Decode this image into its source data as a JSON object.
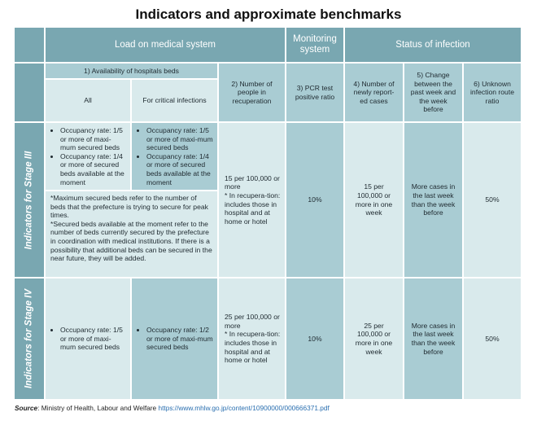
{
  "title": "Indicators and approximate benchmarks",
  "headers": {
    "load": "Load on medical system",
    "monitoring": "Monitoring system",
    "status": "Status of infection",
    "beds": "1) Availability of hospitals beds",
    "beds_all": "All",
    "beds_critical": "For critical infections",
    "recuperation": "2) Number of people in recuperation",
    "pcr": "3) PCR test positive ratio",
    "new_cases": "4) Number of newly report-ed cases",
    "change": "5) Change between the past week and the week before",
    "unknown": "6) Unknown infection route ratio"
  },
  "stage3": {
    "label": "Indicators for Stage III",
    "all": [
      "Occupancy rate: 1/5 or more of maxi-mum secured beds",
      "Occupancy rate: 1/4 or more of secured beds available at the moment"
    ],
    "critical": [
      "Occupancy rate: 1/5 or more of maxi-mum secured beds",
      "Occupancy rate: 1/4 or more of secured beds available at the moment"
    ],
    "note1": "*Maximum secured beds refer to the number of beds that the prefecture is trying to secure for peak times.",
    "note2": "*Secured beds available at the moment refer to the number of beds currently secured by the prefecture in coordination with medical institutions. If there is a possibility that additional beds can be secured in the near future, they will be added.",
    "recuperation_main": "15 per 100,000 or more",
    "recuperation_note": "* In recupera-tion: includes those in hospital and at home or hotel",
    "pcr": "10%",
    "new_cases": "15 per 100,000 or more in one week",
    "change": "More cases in the last week than the week before",
    "unknown": "50%"
  },
  "stage4": {
    "label": "Indicators for Stage IV",
    "all": [
      "Occupancy rate: 1/5 or more of maxi-mum secured beds"
    ],
    "critical": [
      "Occupancy rate: 1/2 or more of maxi-mum secured beds"
    ],
    "recuperation_main": "25 per 100,000 or more",
    "recuperation_note": "* In recupera-tion: includes those in hospital and at home or hotel",
    "pcr": "10%",
    "new_cases": "25 per 100,000 or more in one week",
    "change": "More cases in the last week than the week before",
    "unknown": "50%"
  },
  "source": {
    "label": "Source",
    "text": ": Ministry of Health, Labour and Welfare ",
    "url": "https://www.mhlw.go.jp/content/10900000/000666371.pdf"
  }
}
